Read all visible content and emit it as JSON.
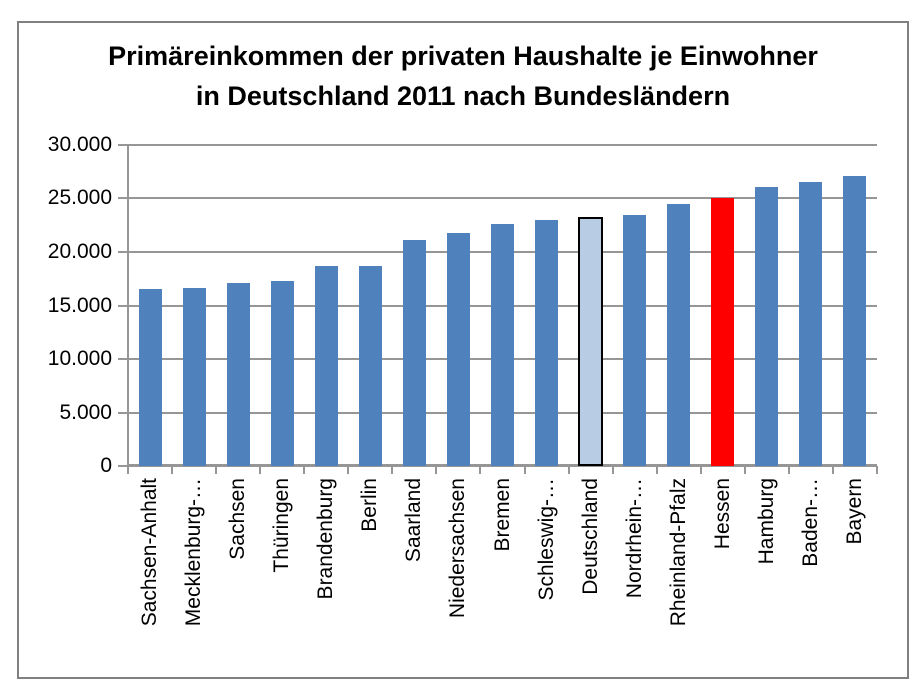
{
  "title": {
    "line1": "Primäreinkommen der privaten Haushalte je Einwohner",
    "line2": "in Deutschland 2011 nach Bundesländern"
  },
  "colors": {
    "bar_blue": "#4F81BD",
    "bar_light_blue": "#B8CCE4",
    "bar_red": "#FF0000",
    "bar_border_black": "#000000",
    "gridline_gray": "#969696",
    "frame_border_gray": "#808080",
    "text_black": "#000000"
  },
  "chart_data": {
    "type": "bar",
    "title": "Primäreinkommen der privaten Haushalte je Einwohner in Deutschland 2011 nach Bundesländern",
    "xlabel": "",
    "ylabel": "",
    "ylim": [
      0,
      30000
    ],
    "grid": true,
    "legend": false,
    "y_ticks": [
      {
        "value": 30000,
        "label": "30.000"
      },
      {
        "value": 25000,
        "label": "25.000"
      },
      {
        "value": 20000,
        "label": "20.000"
      },
      {
        "value": 15000,
        "label": "15.000"
      },
      {
        "value": 10000,
        "label": "10.000"
      },
      {
        "value": 5000,
        "label": "5.000"
      },
      {
        "value": 0,
        "label": "0"
      }
    ],
    "categories": [
      "Sachsen-Anhalt",
      "Mecklenburg-…",
      "Sachsen",
      "Thüringen",
      "Brandenburg",
      "Berlin",
      "Saarland",
      "Niedersachsen",
      "Bremen",
      "Schleswig-…",
      "Deutschland",
      "Nordrhein-…",
      "Rheinland-Pfalz",
      "Hessen",
      "Hamburg",
      "Baden-…",
      "Bayern"
    ],
    "values": [
      16500,
      16600,
      17100,
      17300,
      18700,
      18700,
      21100,
      21800,
      22600,
      23000,
      23300,
      23500,
      24500,
      25000,
      26100,
      26500,
      27100
    ],
    "bar_styles": [
      "blue",
      "blue",
      "blue",
      "blue",
      "blue",
      "blue",
      "blue",
      "blue",
      "blue",
      "blue",
      "light",
      "blue",
      "blue",
      "red",
      "blue",
      "blue",
      "blue"
    ]
  }
}
